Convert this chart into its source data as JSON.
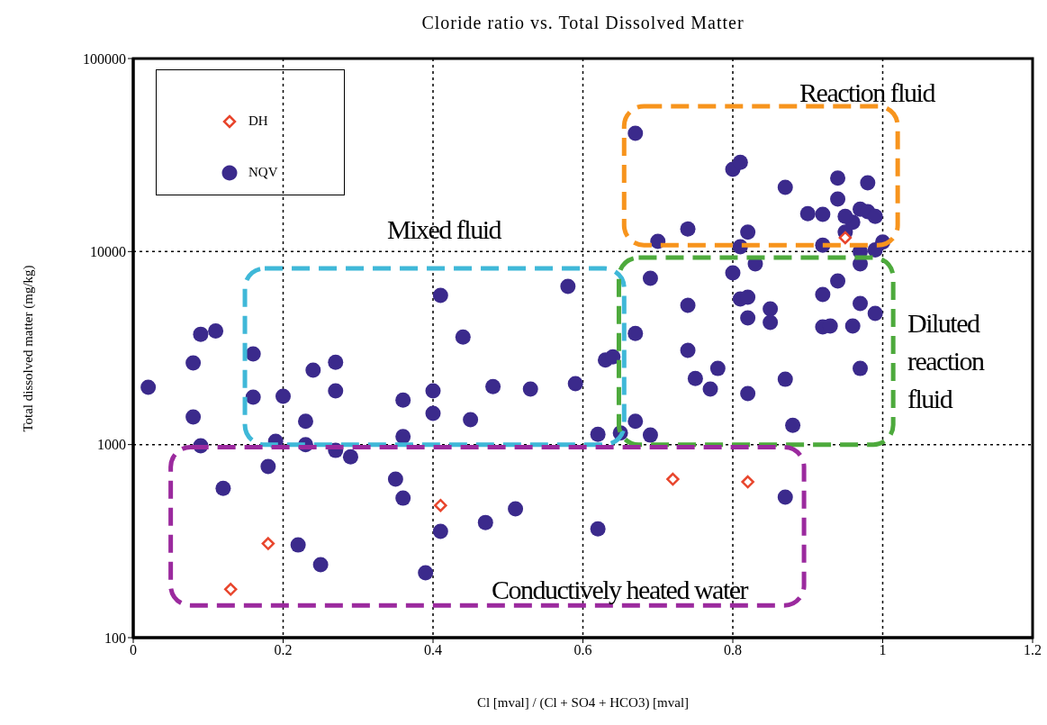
{
  "chart_data": {
    "type": "scatter",
    "title": "Cloride ratio vs. Total Dissolved Matter",
    "xlabel": "Cl [mval] / (Cl + SO4 + HCO3) [mval]",
    "ylabel": "Total dissolved matter (mg/kg)",
    "xlim": [
      0,
      1.2
    ],
    "xticks": [
      0,
      0.2,
      0.4,
      0.6,
      0.8,
      1,
      1.2
    ],
    "ylim": [
      100,
      100000
    ],
    "yticks": [
      100,
      1000,
      10000,
      100000
    ],
    "log": true,
    "grid": true,
    "legend": "top left",
    "annotations": [
      "Reaction fluid",
      "Mixed fluid",
      "Diluted reaction fluid",
      "Conductively heated water"
    ],
    "series": [
      {
        "name": "DH",
        "color": "#e8452c",
        "marker": "diamond",
        "x": [
          0.13,
          0.18,
          0.41,
          0.72,
          0.82,
          0.95
        ],
        "values": [
          178,
          307,
          484,
          662,
          641,
          11800
        ]
      },
      {
        "name": "NQV",
        "color": "#3b2a8c",
        "marker": "circle",
        "x": [
          0.02,
          0.08,
          0.09,
          0.11,
          0.08,
          0.09,
          0.12,
          0.16,
          0.16,
          0.18,
          0.2,
          0.19,
          0.23,
          0.23,
          0.24,
          0.27,
          0.27,
          0.27,
          0.29,
          0.41,
          0.44,
          0.36,
          0.4,
          0.4,
          0.45,
          0.48,
          0.36,
          0.58,
          0.53,
          0.59,
          0.63,
          0.64,
          0.62,
          0.65,
          0.67,
          0.67,
          0.69,
          0.69,
          0.74,
          0.74,
          0.75,
          0.78,
          0.77,
          0.8,
          0.81,
          0.82,
          0.82,
          0.82,
          0.83,
          0.85,
          0.85,
          0.87,
          0.88,
          0.92,
          0.92,
          0.93,
          0.94,
          0.97,
          0.96,
          0.99,
          0.97,
          0.97,
          0.35,
          0.36,
          0.22,
          0.25,
          0.39,
          0.41,
          0.47,
          0.51,
          0.62,
          0.87,
          0.67,
          0.8,
          0.81,
          0.87,
          0.94,
          0.98,
          0.94,
          0.9,
          0.92,
          0.95,
          0.97,
          0.98,
          0.99,
          0.96,
          0.95,
          1.0,
          0.7,
          0.74,
          0.82,
          0.81,
          0.92,
          0.97,
          0.99
        ],
        "values": [
          1980,
          2650,
          3730,
          3880,
          1390,
          985,
          594,
          1760,
          2950,
          770,
          1780,
          1040,
          1320,
          1000,
          2430,
          2670,
          1900,
          933,
          865,
          5930,
          3610,
          1700,
          1900,
          1450,
          1345,
          2000,
          1100,
          6600,
          1940,
          2070,
          2740,
          2850,
          1130,
          1150,
          3770,
          1320,
          1120,
          7270,
          5270,
          3080,
          2200,
          2480,
          1940,
          7750,
          5680,
          5800,
          4530,
          1840,
          8630,
          5040,
          4300,
          2180,
          1260,
          5990,
          4070,
          4110,
          7040,
          5380,
          4110,
          4780,
          2480,
          8630,
          662,
          528,
          302,
          239,
          217,
          355,
          395,
          465,
          366,
          535,
          41000,
          26700,
          29000,
          21500,
          24000,
          22700,
          18700,
          15700,
          15600,
          12600,
          16600,
          16100,
          15200,
          14200,
          15200,
          11200,
          11300,
          13100,
          12600,
          10600,
          10800,
          10000,
          10200
        ]
      }
    ]
  }
}
